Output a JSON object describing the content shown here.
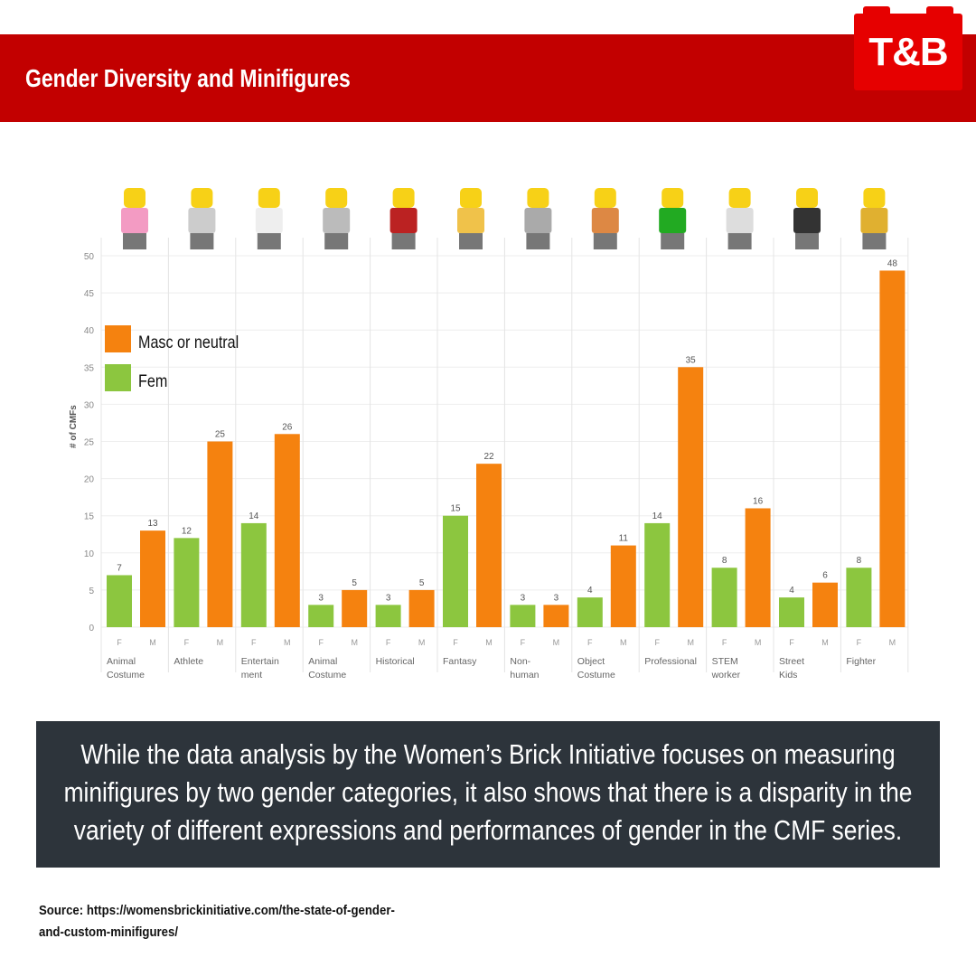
{
  "header": {
    "title": "Gender Diversity and Minifigures",
    "logo": "T&B"
  },
  "chart_data": {
    "type": "bar",
    "title": "",
    "ylabel": "# of CMFs",
    "xlabel": "",
    "ylim": [
      0,
      50
    ],
    "yticks": [
      0,
      5,
      10,
      15,
      20,
      25,
      30,
      35,
      40,
      45,
      50
    ],
    "legend_placement": "top-left",
    "categories": [
      "Animal Costume",
      "Athlete",
      "Entertain ment",
      "Animal Costume",
      "Historical",
      "Fantasy",
      "Non- human",
      "Object Costume",
      "Professional",
      "STEM worker",
      "Street Kids",
      "Fighter"
    ],
    "sub_labels": [
      "F",
      "M"
    ],
    "series": [
      {
        "name": "Fem",
        "color": "#8cc63f",
        "values": [
          7,
          12,
          14,
          3,
          3,
          15,
          3,
          4,
          14,
          8,
          4,
          8
        ]
      },
      {
        "name": "Masc or neutral",
        "color": "#f5820f",
        "values": [
          13,
          25,
          26,
          5,
          5,
          22,
          3,
          11,
          35,
          16,
          6,
          48
        ]
      }
    ]
  },
  "caption": "While the data analysis by the Women’s Brick Initiative focuses on measuring minifigures by two gender categories, it also shows that there is a disparity in the variety of different expressions and performances of gender in the CMF series.",
  "source": "Source: https://womensbrickinitiative.com/the-state-of-gender-and-custom-minifigures/"
}
